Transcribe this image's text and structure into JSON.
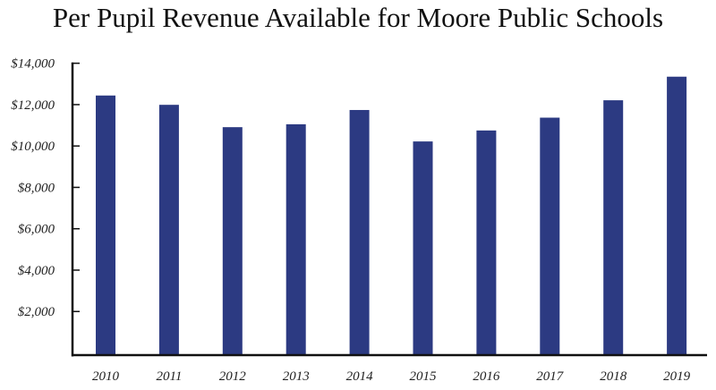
{
  "chart_data": {
    "type": "bar",
    "title": "Per Pupil Revenue Available for Moore Public Schools",
    "xlabel": "",
    "ylabel": "",
    "categories": [
      "2010",
      "2011",
      "2012",
      "2013",
      "2014",
      "2015",
      "2016",
      "2017",
      "2018",
      "2019"
    ],
    "values": [
      12440,
      11990,
      10910,
      11050,
      11740,
      10220,
      10750,
      11370,
      12210,
      13350
    ],
    "ylim": [
      0,
      14000
    ],
    "yticks": [
      2000,
      4000,
      6000,
      8000,
      10000,
      12000,
      14000
    ],
    "ytick_labels": [
      "$2,000",
      "$4,000",
      "$6,000",
      "$8,000",
      "$10,000",
      "$12,000",
      "$14,000"
    ],
    "grid": false,
    "bar_color": "#2c3a82",
    "axis_color": "#111111"
  }
}
